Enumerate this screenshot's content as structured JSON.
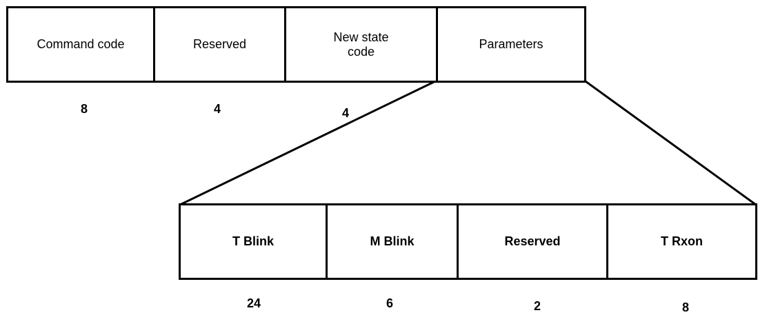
{
  "diagram": {
    "top_fields": [
      {
        "label": "Command code",
        "size": "8"
      },
      {
        "label": "Reserved",
        "size": "4"
      },
      {
        "label": "New state\ncode",
        "size": "4"
      },
      {
        "label": "Parameters",
        "size": ""
      }
    ],
    "bottom_fields": [
      {
        "label": "T Blink",
        "size": "24"
      },
      {
        "label": "M Blink",
        "size": "6"
      },
      {
        "label": "Reserved",
        "size": "2"
      },
      {
        "label": "T Rxon",
        "size": "8"
      }
    ]
  },
  "colors": {
    "stroke": "#000000",
    "background": "#ffffff",
    "text": "#000000"
  }
}
